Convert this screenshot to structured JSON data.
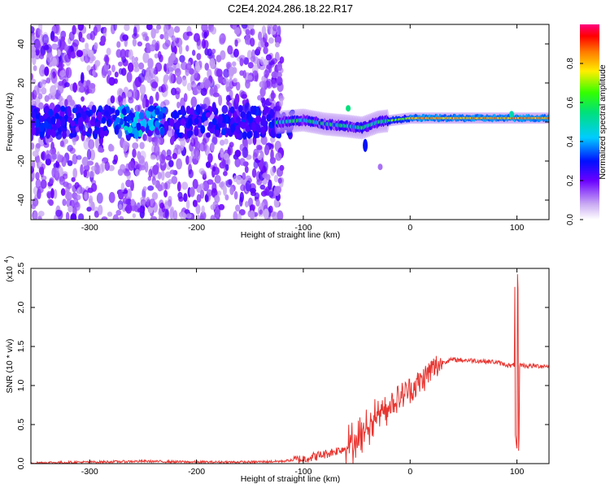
{
  "title": "C2E4.2024.286.18.22.R17",
  "chart_data": [
    {
      "type": "heatmap",
      "xlabel": "Height of straight line (km)",
      "ylabel": "Frequency (Hz)",
      "xlim": [
        -355,
        130
      ],
      "ylim": [
        -50,
        50
      ],
      "xticks": [
        -300,
        -200,
        -100,
        0,
        100
      ],
      "yticks": [
        -40,
        -20,
        0,
        20,
        40
      ],
      "colorbar": {
        "label": "Normalized spectral amplitude",
        "range": [
          0,
          1
        ],
        "ticks": [
          "0.0",
          "0.2",
          "0.4",
          "0.6",
          "0.8"
        ]
      },
      "ridge": [
        {
          "x": -120,
          "f": 0
        },
        {
          "x": -100,
          "f": 1
        },
        {
          "x": -80,
          "f": -1
        },
        {
          "x": -60,
          "f": -2
        },
        {
          "x": -45,
          "f": -3
        },
        {
          "x": -30,
          "f": 0
        },
        {
          "x": 0,
          "f": 2
        },
        {
          "x": 50,
          "f": 2
        },
        {
          "x": 95,
          "f": 2
        },
        {
          "x": 130,
          "f": 2
        }
      ],
      "features": [
        {
          "x": -58,
          "f": 7
        },
        {
          "x": -42,
          "f": -12
        },
        {
          "x": -28,
          "f": -23
        },
        {
          "x": 95,
          "f": 4
        }
      ]
    },
    {
      "type": "line",
      "xlabel": "Height of straight line (km)",
      "ylabel": "SNR (10 * v/v)",
      "yscale_label": "(x10",
      "yscale_exp": "4",
      "xlim": [
        -355,
        130
      ],
      "ylim": [
        0,
        2.5
      ],
      "xticks": [
        -300,
        -200,
        -100,
        0,
        100
      ],
      "yticks": [
        "0.0",
        "0.5",
        "1.0",
        "1.5",
        "2.0",
        "2.5"
      ],
      "series": [
        {
          "color": "#e8342f",
          "x": [
            -355,
            -300,
            -250,
            -200,
            -150,
            -120,
            -100,
            -80,
            -60,
            -50,
            -40,
            -30,
            -20,
            -10,
            0,
            10,
            20,
            30,
            40,
            60,
            80,
            95,
            100,
            105,
            110,
            130
          ],
          "y": [
            0.01,
            0.02,
            0.03,
            0.02,
            0.02,
            0.03,
            0.06,
            0.12,
            0.2,
            0.3,
            0.45,
            0.65,
            0.75,
            0.85,
            0.95,
            1.05,
            1.2,
            1.3,
            1.33,
            1.32,
            1.3,
            1.25,
            1.28,
            1.26,
            1.25,
            1.25
          ]
        }
      ],
      "spike": {
        "x": 100,
        "max": 2.5,
        "min": 0.15
      }
    }
  ]
}
